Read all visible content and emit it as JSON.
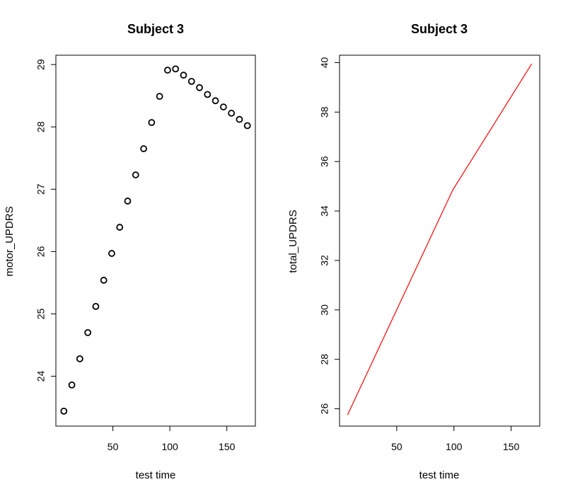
{
  "chart_data": [
    {
      "type": "scatter",
      "title": "Subject 3",
      "xlabel": "test time",
      "ylabel": "motor_UPDRS",
      "xlim": [
        0,
        175
      ],
      "ylim": [
        23.2,
        29.15
      ],
      "x_ticks": [
        "50",
        "100",
        "150"
      ],
      "y_ticks": [
        "24",
        "25",
        "26",
        "27",
        "28",
        "29"
      ],
      "marker_color": "#000000",
      "marker": "open-circle",
      "grid": false,
      "series": [
        {
          "x": [
            7,
            14,
            21,
            28,
            35,
            42,
            49,
            56,
            63,
            70,
            77,
            84,
            91,
            98,
            105,
            112,
            119,
            126,
            133,
            140,
            147,
            154,
            161,
            168
          ],
          "y": [
            23.44,
            23.86,
            24.28,
            24.7,
            25.12,
            25.54,
            25.97,
            26.39,
            26.81,
            27.23,
            27.65,
            28.07,
            28.49,
            28.91,
            28.93,
            28.83,
            28.73,
            28.63,
            28.52,
            28.42,
            28.32,
            28.22,
            28.12,
            28.02
          ]
        }
      ]
    },
    {
      "type": "line",
      "title": "Subject 3",
      "xlabel": "test time",
      "ylabel": "total_UPDRS",
      "xlim": [
        0,
        175
      ],
      "ylim": [
        25.3,
        40.3
      ],
      "x_ticks": [
        "50",
        "100",
        "150"
      ],
      "y_ticks": [
        "26",
        "28",
        "30",
        "32",
        "34",
        "36",
        "38",
        "40"
      ],
      "line_color": "#ff0000",
      "grid": false,
      "series": [
        {
          "x": [
            7,
            99,
            168
          ],
          "y": [
            25.75,
            34.85,
            39.95
          ]
        }
      ]
    }
  ]
}
